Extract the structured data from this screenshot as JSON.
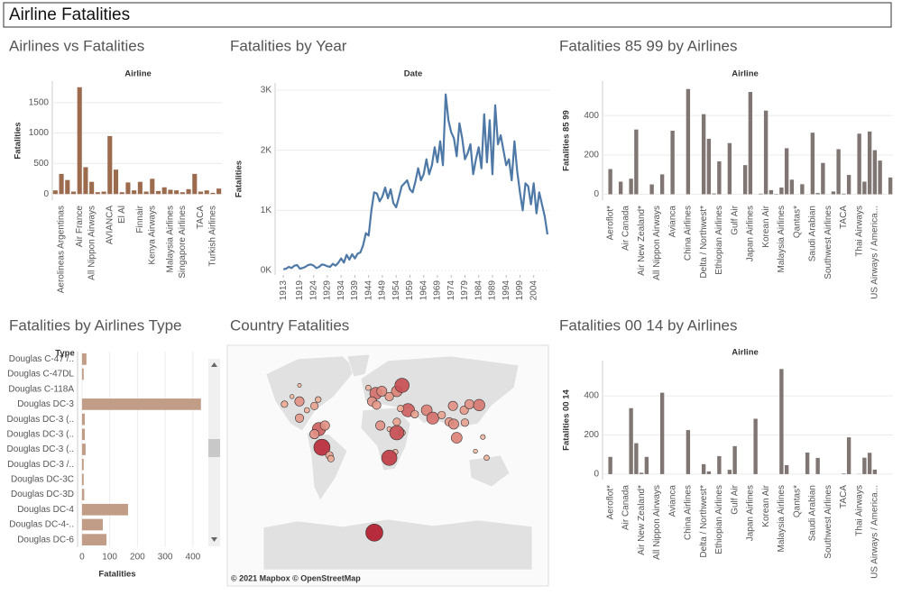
{
  "title": "Airline Fatalities",
  "chart_data": [
    {
      "type": "bar",
      "title": "Airlines vs Fatalities",
      "x_label": "Airline",
      "y_label": "Fatalities",
      "color": "#9c6b4e",
      "grid": true,
      "categories": [
        null,
        "Aerolineas Argentinas",
        null,
        null,
        "Air France",
        null,
        "All Nippon Airways",
        null,
        null,
        "AVIANCA",
        null,
        "El Al",
        null,
        null,
        "Finnair",
        null,
        "Kenya Airways",
        null,
        null,
        "Malaysia Airlines",
        null,
        "Singapore Airlines",
        null,
        null,
        "TACA",
        null,
        "Turkish Airlines",
        null
      ],
      "values": [
        60,
        330,
        230,
        40,
        1750,
        440,
        200,
        30,
        40,
        950,
        400,
        30,
        190,
        60,
        200,
        40,
        250,
        50,
        110,
        70,
        60,
        30,
        80,
        330,
        40,
        60,
        20,
        90
      ],
      "ylim": [
        -100,
        1850
      ],
      "yticks": [
        0,
        500,
        1000,
        1500
      ]
    },
    {
      "type": "line",
      "title": "Fatalities by Year",
      "x_label": "Date",
      "y_label": "Fatalities",
      "color": "#4e79a7",
      "grid": true,
      "x": [
        1913,
        1914,
        1915,
        1916,
        1917,
        1918,
        1919,
        1920,
        1921,
        1922,
        1923,
        1924,
        1925,
        1926,
        1927,
        1928,
        1929,
        1930,
        1931,
        1932,
        1933,
        1934,
        1935,
        1936,
        1937,
        1938,
        1939,
        1940,
        1941,
        1942,
        1943,
        1944,
        1945,
        1946,
        1947,
        1948,
        1949,
        1950,
        1951,
        1952,
        1953,
        1954,
        1955,
        1956,
        1957,
        1958,
        1959,
        1960,
        1961,
        1962,
        1963,
        1964,
        1965,
        1966,
        1967,
        1968,
        1969,
        1970,
        1971,
        1972,
        1973,
        1974,
        1975,
        1976,
        1977,
        1978,
        1979,
        1980,
        1981,
        1982,
        1983,
        1984,
        1985,
        1986,
        1987,
        1988,
        1989,
        1990,
        1991,
        1992,
        1993,
        1994,
        1995,
        1996,
        1997,
        1998,
        1999,
        2000,
        2001,
        2002,
        2003,
        2004,
        2005,
        2006,
        2007,
        2008,
        2009
      ],
      "values": [
        20,
        30,
        60,
        40,
        80,
        90,
        30,
        40,
        60,
        90,
        100,
        80,
        40,
        60,
        100,
        90,
        70,
        60,
        110,
        80,
        130,
        200,
        130,
        260,
        180,
        270,
        200,
        280,
        300,
        420,
        620,
        580,
        1000,
        1300,
        1280,
        1150,
        1230,
        1380,
        1200,
        1350,
        1120,
        1050,
        1220,
        1400,
        1450,
        1500,
        1350,
        1300,
        1480,
        1700,
        1500,
        1600,
        1850,
        1600,
        1750,
        2050,
        1800,
        2150,
        1750,
        2930,
        2500,
        2300,
        2200,
        1900,
        2450,
        2200,
        1850,
        1950,
        2100,
        1600,
        1850,
        2050,
        1700,
        2600,
        1800,
        2500,
        1600,
        2750,
        2100,
        2250,
        2000,
        1750,
        1850,
        1500,
        2150,
        1650,
        1300,
        1000,
        1450,
        1400,
        1100,
        1450,
        950,
        1300,
        1100,
        900,
        600
      ],
      "xlim": [
        1910,
        2010
      ],
      "xticks": [
        1913,
        1919,
        1924,
        1929,
        1934,
        1939,
        1944,
        1949,
        1954,
        1959,
        1964,
        1969,
        1974,
        1979,
        1984,
        1989,
        1994,
        1999,
        2004
      ],
      "ylim": [
        -75,
        3120
      ],
      "yticks": [
        {
          "value": 0,
          "label": "0K"
        },
        {
          "value": 1000,
          "label": "1K"
        },
        {
          "value": 2000,
          "label": "2K"
        },
        {
          "value": 3000,
          "label": "3K"
        }
      ]
    },
    {
      "type": "bar",
      "title": "Fatalities 85 99 by Airlines",
      "x_label": "Airline",
      "y_label": "Fatalities 85 99",
      "color": "#7f7572",
      "grid": true,
      "categories": [
        null,
        "Aeroflot*",
        null,
        null,
        "Air Canada",
        null,
        null,
        "Air New Zealand*",
        null,
        null,
        "All Nippon Airways",
        null,
        null,
        "Avianca",
        null,
        null,
        "China Airlines",
        null,
        null,
        "Delta / Northwest*",
        null,
        null,
        "Ethiopian Airlines",
        null,
        null,
        "Gulf Air",
        null,
        null,
        "Japan Airlines",
        null,
        null,
        "Korean Air",
        null,
        null,
        "Malaysia Airlines",
        null,
        null,
        "Qantas*",
        null,
        null,
        "Saudi Arabian",
        null,
        null,
        "Southwest Airlines",
        null,
        null,
        "TACA",
        null,
        null,
        "Thai Airways",
        null,
        null,
        "US Airways / America...",
        null,
        null,
        null
      ],
      "values": [
        0,
        128,
        0,
        64,
        0,
        79,
        329,
        0,
        0,
        50,
        0,
        101,
        0,
        323,
        0,
        0,
        535,
        0,
        0,
        407,
        282,
        4,
        167,
        0,
        260,
        0,
        0,
        148,
        520,
        0,
        3,
        425,
        21,
        2,
        34,
        234,
        74,
        0,
        51,
        0,
        313,
        6,
        159,
        0,
        14,
        229,
        3,
        98,
        0,
        308,
        64,
        319,
        224,
        171,
        0,
        85
      ],
      "ylim": [
        -30,
        575
      ],
      "yticks": [
        0,
        200,
        400
      ]
    },
    {
      "type": "barh",
      "title": "Fatalities by Airlines Type",
      "x_label": "Fatalities",
      "y_label": "Type",
      "color": "#c19c86",
      "grid": true,
      "categories": [
        "Douglas C-47 /..",
        "Douglas C-47DL",
        "Douglas C-118A",
        "Douglas DC-3",
        "Douglas DC-3 (..",
        "Douglas DC-3 (..",
        "Douglas DC-3 (..",
        "Douglas DC-3 /..",
        "Douglas DC-3C",
        "Douglas DC-3D",
        "Douglas DC-4",
        "Douglas DC-4-..",
        "Douglas DC-6"
      ],
      "values": [
        16,
        6,
        0,
        429,
        10,
        10,
        13,
        6,
        6,
        8,
        166,
        75,
        88
      ],
      "xlim": [
        -16,
        446
      ],
      "xticks": [
        0,
        100,
        200,
        300,
        400
      ]
    },
    {
      "type": "map",
      "title": "Country Fatalities",
      "attribution": "© 2021 Mapbox © OpenStreetMap",
      "colors": [
        "#f6c4a8",
        "#b2182b"
      ],
      "x": [
        -100,
        -80,
        -120,
        -90,
        -75,
        -110,
        -100,
        -100,
        -74,
        -66,
        -70,
        -60,
        -58,
        -80,
        2,
        10,
        -3,
        30,
        37,
        20,
        -8,
        8,
        30,
        3,
        37,
        28,
        20,
        45,
        54,
        35,
        70,
        78,
        90,
        105,
        120,
        127,
        140,
        100,
        106,
        121,
        110,
        145,
        20,
        30,
        150,
        135,
        0
      ],
      "y": [
        40,
        35,
        37,
        30,
        42,
        45,
        55,
        20,
        5,
        10,
        -20,
        -30,
        -34,
        -2,
        48,
        50,
        40,
        50,
        55,
        45,
        53,
        10,
        15,
        36,
        0,
        -26,
        5,
        30,
        25,
        32,
        30,
        20,
        24,
        35,
        30,
        37,
        36,
        15,
        12,
        14,
        -7,
        -6,
        -33,
        0,
        -33,
        -25,
        -80
      ],
      "values": [
        300,
        200,
        150,
        100,
        120,
        60,
        50,
        250,
        600,
        300,
        900,
        200,
        150,
        300,
        500,
        350,
        300,
        400,
        700,
        250,
        100,
        300,
        200,
        250,
        150,
        100,
        80,
        600,
        200,
        150,
        400,
        500,
        200,
        300,
        250,
        300,
        450,
        250,
        350,
        200,
        400,
        80,
        800,
        700,
        100,
        60,
        1000
      ]
    },
    {
      "type": "bar",
      "title": "Fatalities 00 14 by Airlines",
      "x_label": "Airline",
      "y_label": "Fatalities 00 14",
      "color": "#7f7572",
      "grid": true,
      "categories": [
        null,
        "Aeroflot*",
        null,
        null,
        "Air Canada",
        null,
        null,
        "Air New Zealand*",
        null,
        null,
        "All Nippon Airways",
        null,
        null,
        "Avianca",
        null,
        null,
        "China Airlines",
        null,
        null,
        "Delta / Northwest*",
        null,
        null,
        "Ethiopian Airlines",
        null,
        null,
        "Gulf Air",
        null,
        null,
        "Japan Airlines",
        null,
        null,
        "Korean Air",
        null,
        null,
        "Malaysia Airlines",
        null,
        null,
        "Qantas*",
        null,
        null,
        "Saudi Arabian",
        null,
        null,
        "Southwest Airlines",
        null,
        null,
        "TACA",
        null,
        null,
        "Thai Airways",
        null,
        null,
        "US Airways / America...",
        null,
        null,
        null
      ],
      "values": [
        0,
        88,
        0,
        0,
        0,
        337,
        158,
        7,
        88,
        0,
        0,
        416,
        0,
        0,
        0,
        0,
        225,
        0,
        0,
        51,
        14,
        0,
        92,
        0,
        22,
        143,
        0,
        0,
        0,
        283,
        0,
        0,
        0,
        0,
        537,
        46,
        0,
        0,
        0,
        110,
        0,
        83,
        0,
        0,
        0,
        0,
        3,
        188,
        0,
        1,
        84,
        109,
        23,
        0,
        0,
        0
      ],
      "ylim": [
        -28,
        580
      ],
      "yticks": [
        0,
        200,
        400
      ]
    }
  ]
}
